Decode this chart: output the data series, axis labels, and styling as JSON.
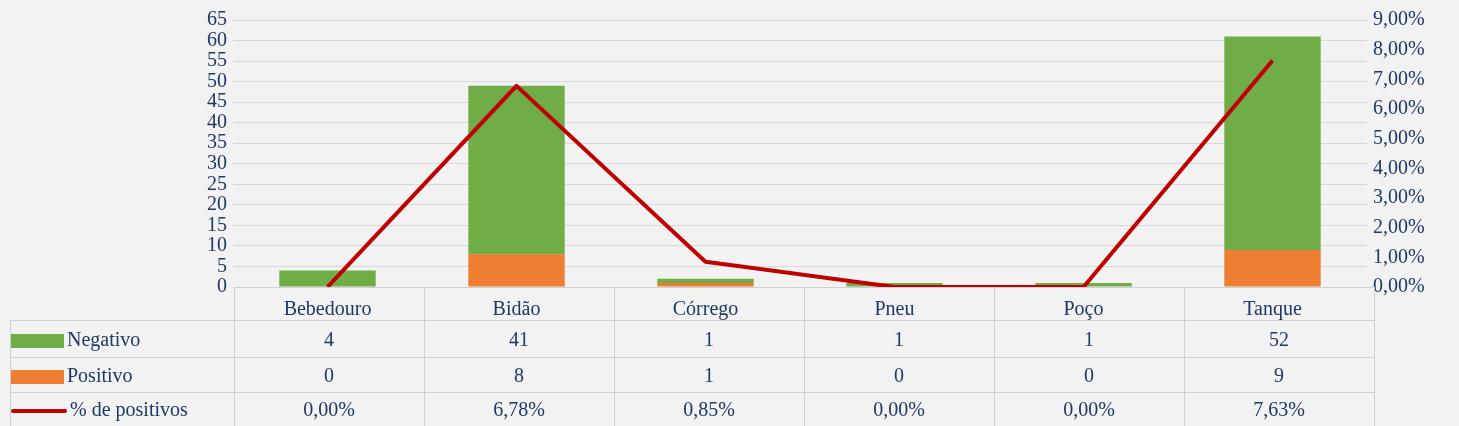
{
  "chart_data": {
    "type": "bar",
    "stacked": true,
    "categories": [
      "Bebedouro",
      "Bidão",
      "Córrego",
      "Pneu",
      "Poço",
      "Tanque"
    ],
    "series": [
      {
        "name": "Positivo",
        "color": "#ed7d31",
        "values": [
          0,
          8,
          1,
          0,
          0,
          9
        ],
        "value_labels": [
          "0",
          "8",
          "1",
          "0",
          "0",
          "9"
        ]
      },
      {
        "name": "Negativo",
        "color": "#70ad47",
        "values": [
          4,
          41,
          1,
          1,
          1,
          52
        ],
        "value_labels": [
          "4",
          "41",
          "1",
          "1",
          "1",
          "52"
        ]
      },
      {
        "name": "% de positivos",
        "type": "line",
        "axis": "y2",
        "color": "#c00000",
        "values": [
          0,
          6.78,
          0.85,
          0,
          0,
          7.63
        ],
        "value_labels": [
          "0,00%",
          "6,78%",
          "0,85%",
          "0,00%",
          "0,00%",
          "7,63%"
        ]
      }
    ],
    "ylim": [
      0,
      65
    ],
    "yticks": [
      0,
      5,
      10,
      15,
      20,
      25,
      30,
      35,
      40,
      45,
      50,
      55,
      60,
      65
    ],
    "y2lim": [
      0,
      9
    ],
    "y2ticks": [
      {
        "value": 0,
        "label": "0,00%"
      },
      {
        "value": 1,
        "label": "1,00%"
      },
      {
        "value": 2,
        "label": "2,00%"
      },
      {
        "value": 3,
        "label": "3,00%"
      },
      {
        "value": 4,
        "label": "4,00%"
      },
      {
        "value": 5,
        "label": "5,00%"
      },
      {
        "value": 6,
        "label": "6,00%"
      },
      {
        "value": 7,
        "label": "7,00%"
      },
      {
        "value": 8,
        "label": "8,00%"
      },
      {
        "value": 9,
        "label": "9,00%"
      }
    ],
    "grid": "y",
    "legend": "bottom",
    "marker": "none",
    "line_style": "solid"
  }
}
